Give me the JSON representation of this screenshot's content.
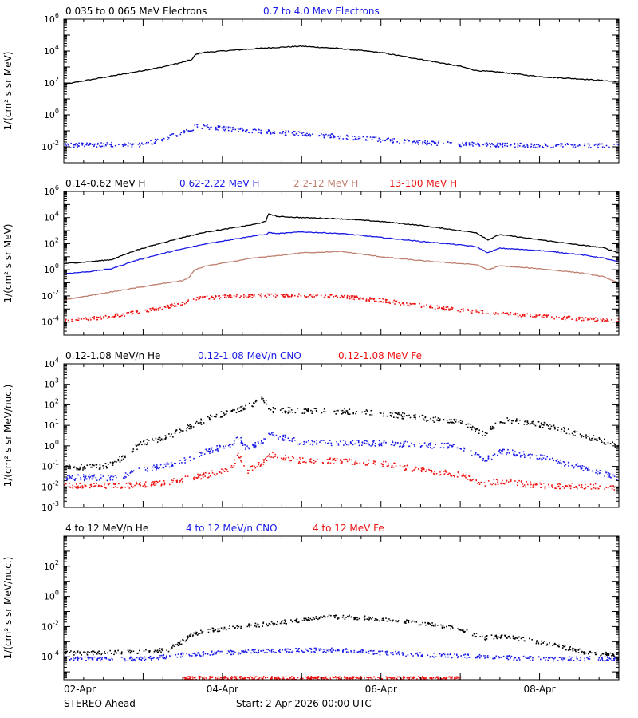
{
  "colors": {
    "black": "#000000",
    "blue": "#1a1ae6",
    "tan": "#c08070",
    "red": "#ee1111"
  },
  "footer": {
    "spacecraft": "STEREO Ahead",
    "start": "Start:  2-Apr-2026 00:00 UTC"
  },
  "chart_data": [
    {
      "type": "scatter",
      "ylabel": "1/(cm² s sr MeV)",
      "yscale": "log",
      "ylim": [
        0.001,
        1000000
      ],
      "yticks": [
        [
          "10",
          "6"
        ],
        [
          "10",
          "4"
        ],
        [
          "10",
          "2"
        ],
        [
          "10",
          "0"
        ],
        [
          "10",
          "-2"
        ]
      ],
      "xlim": [
        "2026-04-02 00:00",
        "2026-04-09 00:00"
      ],
      "xticks": [],
      "legend": [
        {
          "text": "0.035 to 0.065 MeV Electrons",
          "color": "black"
        },
        {
          "text": "0.7 to 4.0 Mev Electrons",
          "color": "blue"
        }
      ],
      "series": [
        {
          "name": "0.035 to 0.065 MeV Electrons",
          "color": "black",
          "style": "line",
          "x": [
            0.0,
            0.3,
            0.8,
            1.2,
            1.5,
            1.62,
            1.66,
            1.75,
            2.0,
            2.5,
            3.0,
            3.5,
            4.0,
            4.5,
            5.0,
            5.2,
            5.3,
            5.5,
            6.0,
            6.5,
            7.0
          ],
          "y": [
            80,
            150,
            400,
            900,
            2000,
            3000,
            6000,
            8000,
            10000,
            15000,
            20000,
            14000,
            8000,
            3000,
            1100,
            600,
            550,
            480,
            250,
            180,
            120
          ]
        },
        {
          "name": "0.7 to 4.0 Mev Electrons",
          "color": "blue",
          "style": "points",
          "x": [
            0.0,
            0.5,
            1.0,
            1.3,
            1.5,
            1.62,
            1.66,
            1.8,
            2.0,
            2.5,
            3.0,
            3.5,
            4.0,
            4.5,
            5.0,
            5.5,
            6.0,
            6.5,
            7.0
          ],
          "y": [
            0.013,
            0.015,
            0.015,
            0.04,
            0.08,
            0.15,
            0.22,
            0.19,
            0.15,
            0.1,
            0.07,
            0.045,
            0.03,
            0.02,
            0.016,
            0.014,
            0.013,
            0.013,
            0.012
          ]
        }
      ]
    },
    {
      "type": "scatter",
      "ylabel": "1/(cm² s sr MeV)",
      "yscale": "log",
      "ylim": [
        1e-05,
        1000000
      ],
      "yticks": [
        [
          "10",
          "6"
        ],
        [
          "10",
          "4"
        ],
        [
          "10",
          "2"
        ],
        [
          "10",
          "0"
        ],
        [
          "10",
          "-2"
        ],
        [
          "10",
          "-4"
        ]
      ],
      "xlim": [
        "2026-04-02 00:00",
        "2026-04-09 00:00"
      ],
      "xticks": [],
      "legend": [
        {
          "text": "0.14-0.62 MeV H",
          "color": "black"
        },
        {
          "text": "0.62-2.22 MeV H",
          "color": "blue"
        },
        {
          "text": "2.2-12 MeV H",
          "color": "tan"
        },
        {
          "text": "13-100 MeV H",
          "color": "red"
        }
      ],
      "series": [
        {
          "name": "0.14-0.62 MeV H",
          "color": "black",
          "style": "line",
          "x": [
            0.0,
            0.3,
            0.6,
            0.9,
            1.2,
            1.5,
            1.8,
            2.1,
            2.4,
            2.55,
            2.58,
            2.7,
            3.0,
            3.5,
            4.0,
            4.5,
            5.0,
            5.2,
            5.35,
            5.5,
            6.0,
            6.5,
            6.8,
            7.0
          ],
          "y": [
            3,
            4,
            6,
            30,
            100,
            300,
            800,
            1500,
            3000,
            5000,
            20000,
            12000,
            10000,
            8000,
            5000,
            2500,
            1000,
            700,
            200,
            500,
            200,
            80,
            50,
            20
          ]
        },
        {
          "name": "0.62-2.22 MeV H",
          "color": "blue",
          "style": "line",
          "x": [
            0.0,
            0.3,
            0.6,
            0.9,
            1.2,
            1.5,
            1.8,
            2.1,
            2.4,
            2.55,
            2.58,
            2.7,
            3.0,
            3.5,
            4.0,
            4.5,
            5.0,
            5.2,
            5.35,
            5.5,
            6.0,
            6.5,
            6.8,
            7.0
          ],
          "y": [
            0.5,
            0.7,
            1.2,
            5,
            15,
            40,
            100,
            200,
            400,
            500,
            700,
            600,
            800,
            600,
            300,
            150,
            80,
            60,
            20,
            45,
            30,
            15,
            8,
            4
          ]
        },
        {
          "name": "2.2-12 MeV H",
          "color": "tan",
          "style": "line",
          "x": [
            0.0,
            0.3,
            0.6,
            0.9,
            1.2,
            1.5,
            1.58,
            1.65,
            1.8,
            2.1,
            2.4,
            2.7,
            3.0,
            3.5,
            4.0,
            4.5,
            5.0,
            5.2,
            5.35,
            5.5,
            6.0,
            6.5,
            6.8,
            7.0
          ],
          "y": [
            0.005,
            0.01,
            0.02,
            0.04,
            0.08,
            0.15,
            0.25,
            1,
            2,
            4,
            8,
            12,
            20,
            25,
            10,
            5,
            3,
            2.5,
            1,
            2,
            1.2,
            0.6,
            0.3,
            0.1
          ]
        },
        {
          "name": "13-100 MeV H",
          "color": "red",
          "style": "points",
          "x": [
            0.0,
            0.3,
            0.6,
            0.9,
            1.2,
            1.5,
            1.62,
            1.66,
            1.8,
            2.1,
            2.5,
            3.0,
            3.5,
            4.0,
            4.5,
            5.0,
            5.5,
            6.0,
            6.5,
            7.0
          ],
          "y": [
            0.00015,
            0.0002,
            0.0003,
            0.0006,
            0.0012,
            0.003,
            0.005,
            0.007,
            0.008,
            0.01,
            0.012,
            0.012,
            0.01,
            0.005,
            0.002,
            0.0009,
            0.0005,
            0.0003,
            0.0002,
            0.00015
          ]
        }
      ]
    },
    {
      "type": "scatter",
      "ylabel": "1/(cm² s sr MeV/nuc.)",
      "yscale": "log",
      "ylim": [
        0.001,
        10000
      ],
      "yticks": [
        [
          "10",
          "4"
        ],
        [
          "10",
          "3"
        ],
        [
          "10",
          "2"
        ],
        [
          "10",
          "1"
        ],
        [
          "10",
          "0"
        ],
        [
          "10",
          "-1"
        ],
        [
          "10",
          "-2"
        ],
        [
          "10",
          "-3"
        ]
      ],
      "xlim": [
        "2026-04-02 00:00",
        "2026-04-09 00:00"
      ],
      "xticks": [],
      "legend": [
        {
          "text": "0.12-1.08 MeV/n He",
          "color": "black"
        },
        {
          "text": "0.12-1.08 MeV/n CNO",
          "color": "blue"
        },
        {
          "text": "0.12-1.08 MeV Fe",
          "color": "red"
        }
      ],
      "series": [
        {
          "name": "0.12-1.08 MeV/n He",
          "color": "black",
          "style": "points",
          "x": [
            0.0,
            0.5,
            0.75,
            0.8,
            1.0,
            1.3,
            1.6,
            1.9,
            2.1,
            2.3,
            2.45,
            2.5,
            2.6,
            3.0,
            3.5,
            4.0,
            4.5,
            5.0,
            5.3,
            5.5,
            6.0,
            6.5,
            7.0
          ],
          "y": [
            0.1,
            0.1,
            0.3,
            0.5,
            1.5,
            3,
            10,
            30,
            50,
            90,
            150,
            250,
            60,
            55,
            50,
            40,
            25,
            15,
            4,
            20,
            12,
            4,
            1
          ]
        },
        {
          "name": "0.12-1.08 MeV/n CNO",
          "color": "blue",
          "style": "points",
          "x": [
            0.0,
            0.7,
            0.9,
            1.2,
            1.5,
            1.8,
            2.1,
            2.2,
            2.3,
            2.5,
            2.6,
            3.0,
            3.5,
            4.0,
            4.5,
            5.0,
            5.3,
            5.5,
            6.0,
            6.5,
            7.0
          ],
          "y": [
            0.03,
            0.03,
            0.06,
            0.1,
            0.2,
            0.6,
            1.2,
            3,
            0.8,
            1.5,
            4,
            1.5,
            1.5,
            1.4,
            1.2,
            1,
            0.2,
            0.6,
            0.3,
            0.1,
            0.03
          ]
        },
        {
          "name": "0.12-1.08 MeV Fe",
          "color": "red",
          "style": "points",
          "x": [
            0.0,
            0.7,
            1.2,
            1.8,
            2.1,
            2.2,
            2.3,
            2.5,
            2.6,
            3.0,
            3.5,
            4.0,
            4.5,
            5.0,
            5.3,
            5.5,
            6.0,
            6.5,
            7.0
          ],
          "y": [
            0.012,
            0.012,
            0.015,
            0.04,
            0.08,
            0.4,
            0.06,
            0.15,
            0.4,
            0.2,
            0.2,
            0.15,
            0.07,
            0.04,
            0.015,
            0.02,
            0.012,
            0.012,
            0.01
          ]
        }
      ]
    },
    {
      "type": "scatter",
      "ylabel": "1/(cm² s sr MeV/nuc.)",
      "yscale": "log",
      "ylim": [
        3e-06,
        10000
      ],
      "yticks": [
        [
          "10",
          "2"
        ],
        [
          "10",
          "0"
        ],
        [
          "10",
          "-2"
        ],
        [
          "10",
          "-4"
        ]
      ],
      "xlim": [
        "2026-04-02 00:00",
        "2026-04-09 00:00"
      ],
      "xticks": [
        "02-Apr",
        "04-Apr",
        "06-Apr",
        "08-Apr"
      ],
      "legend": [
        {
          "text": "4 to 12 MeV/n He",
          "color": "black"
        },
        {
          "text": "4 to 12 MeV/n CNO",
          "color": "blue"
        },
        {
          "text": "4 to 12 MeV Fe",
          "color": "red"
        }
      ],
      "series": [
        {
          "name": "4 to 12 MeV/n He",
          "color": "black",
          "style": "points",
          "x": [
            0.0,
            0.5,
            1.0,
            1.3,
            1.5,
            1.6,
            1.8,
            2.2,
            2.7,
            3.0,
            3.3,
            3.6,
            4.0,
            4.3,
            4.6,
            5.0,
            5.3,
            5.5,
            5.8,
            6.2,
            6.6,
            7.0
          ],
          "y": [
            0.0002,
            0.0002,
            0.00025,
            0.0003,
            0.0012,
            0.003,
            0.006,
            0.01,
            0.02,
            0.03,
            0.05,
            0.045,
            0.035,
            0.025,
            0.015,
            0.007,
            0.002,
            0.0025,
            0.0015,
            0.0006,
            0.0002,
            0.00015
          ]
        },
        {
          "name": "4 to 12 MeV/n CNO",
          "color": "blue",
          "style": "points",
          "x": [
            0.0,
            0.5,
            1.0,
            1.5,
            2.0,
            2.5,
            3.0,
            3.5,
            4.0,
            4.5,
            5.0,
            5.5,
            6.0,
            6.5,
            7.0
          ],
          "y": [
            8e-05,
            8e-05,
            8e-05,
            0.00015,
            0.0002,
            0.00025,
            0.0003,
            0.0003,
            0.0002,
            0.00015,
            0.00012,
            0.0001,
            8e-05,
            8e-05,
            8e-05
          ]
        },
        {
          "name": "4 to 12 MeV Fe",
          "color": "red",
          "style": "points",
          "x": [
            1.5,
            3.0,
            5.0
          ],
          "y": [
            4e-06,
            4e-06,
            4e-06
          ]
        }
      ]
    }
  ]
}
